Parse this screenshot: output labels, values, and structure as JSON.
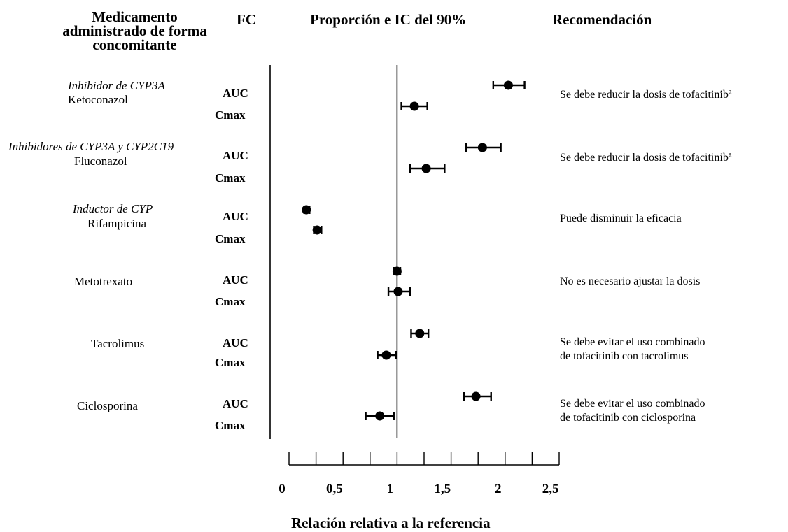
{
  "headers": {
    "drug": "Medicamento administrado de forma concomitante",
    "pk": "FC",
    "ratio": "Proporción e IC del 90%",
    "recommendation": "Recomendación"
  },
  "chart_data": {
    "type": "forest",
    "xlabel": "Relación relativa a la referencia",
    "xlim": [
      0,
      2.5
    ],
    "ticks": [
      0,
      0.25,
      0.5,
      0.75,
      1,
      1.25,
      1.5,
      1.75,
      2,
      2.25,
      2.5
    ],
    "tick_labels": [
      "0",
      "0,5",
      "1",
      "1,5",
      "2",
      "2,5"
    ],
    "tick_label_values": [
      0,
      0.5,
      1,
      1.5,
      2,
      2.5
    ],
    "reference_line": 1,
    "groups": [
      {
        "class": "Inhibidor de CYP3A",
        "drug": "Ketoconazol",
        "recommendation": [
          "Se debe reducir la dosis de tofacitinibª"
        ],
        "rows": [
          {
            "pk": "AUC",
            "value": 2.03,
            "ci": [
              1.89,
              2.18
            ]
          },
          {
            "pk": "Cmax",
            "value": 1.16,
            "ci": [
              1.04,
              1.28
            ]
          }
        ]
      },
      {
        "class": "Inhibidores de CYP3A y CYP2C19",
        "drug": "Fluconazol",
        "recommendation": [
          "Se debe reducir la dosis de tofacitinibª"
        ],
        "rows": [
          {
            "pk": "AUC",
            "value": 1.79,
            "ci": [
              1.64,
              1.96
            ]
          },
          {
            "pk": "Cmax",
            "value": 1.27,
            "ci": [
              1.12,
              1.44
            ]
          }
        ]
      },
      {
        "class": "Inductor de CYP",
        "drug": "Rifampicina",
        "recommendation": [
          "Puede disminuir la eficacia"
        ],
        "rows": [
          {
            "pk": "AUC",
            "value": 0.16,
            "ci": [
              0.14,
              0.19
            ]
          },
          {
            "pk": "Cmax",
            "value": 0.26,
            "ci": [
              0.23,
              0.3
            ]
          }
        ]
      },
      {
        "class": "",
        "drug": "Metotrexato",
        "recommendation": [
          "No es necesario ajustar la dosis"
        ],
        "rows": [
          {
            "pk": "AUC",
            "value": 1.0,
            "ci": [
              0.97,
              1.03
            ]
          },
          {
            "pk": "Cmax",
            "value": 1.01,
            "ci": [
              0.92,
              1.12
            ]
          }
        ]
      },
      {
        "class": "",
        "drug": "Tacrolimus",
        "recommendation": [
          "Se debe evitar el uso combinado",
          "de tofacitinib con tacrolimus"
        ],
        "rows": [
          {
            "pk": "AUC",
            "value": 1.21,
            "ci": [
              1.13,
              1.29
            ]
          },
          {
            "pk": "Cmax",
            "value": 0.9,
            "ci": [
              0.82,
              0.99
            ]
          }
        ]
      },
      {
        "class": "",
        "drug": "Ciclosporina",
        "recommendation": [
          "Se debe evitar el uso combinado",
          "de tofacitinib con ciclosporina"
        ],
        "rows": [
          {
            "pk": "AUC",
            "value": 1.73,
            "ci": [
              1.62,
              1.87
            ]
          },
          {
            "pk": "Cmax",
            "value": 0.84,
            "ci": [
              0.71,
              0.97
            ]
          }
        ]
      }
    ]
  }
}
